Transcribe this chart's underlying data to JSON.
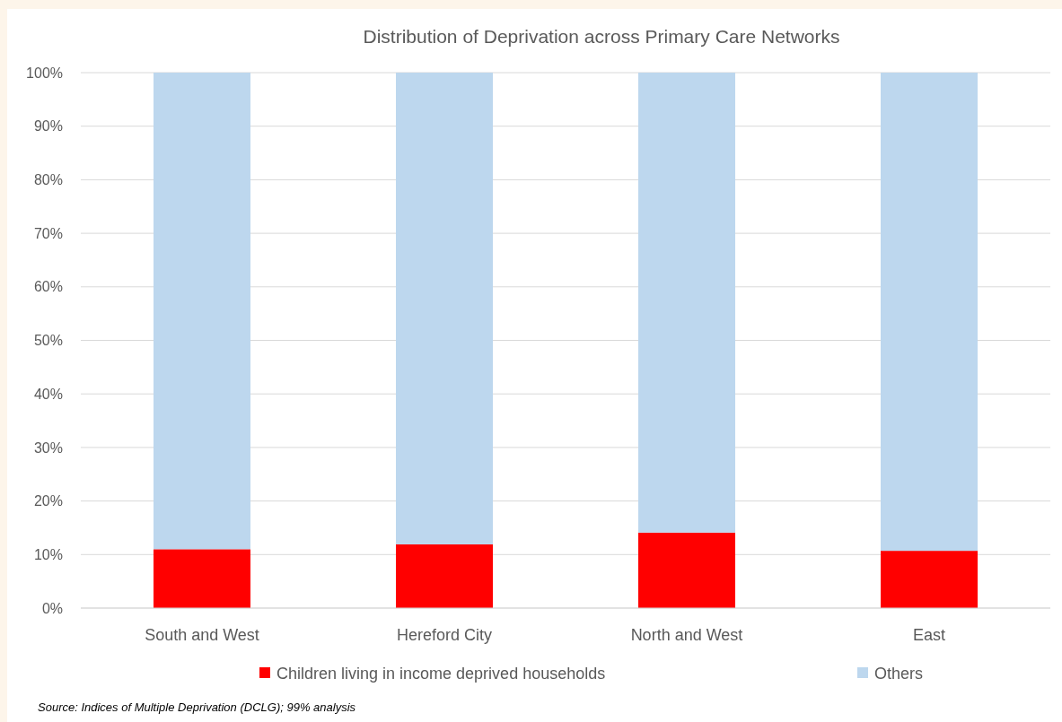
{
  "chart_data": {
    "type": "bar",
    "title": "Distribution of Deprivation across Primary Care Networks",
    "categories": [
      "South and West",
      "Hereford City",
      "North and West",
      "East"
    ],
    "stacked": true,
    "series": [
      {
        "name": "Children living in income deprived households",
        "color": "#ff0000",
        "values": [
          11.0,
          11.9,
          14.1,
          10.7
        ]
      },
      {
        "name": "Others",
        "color": "#bdd7ee",
        "values": [
          89.0,
          88.1,
          85.9,
          89.3
        ]
      }
    ],
    "ylim": [
      0,
      100
    ],
    "yticks": [
      {
        "value": 0,
        "label": "0%"
      },
      {
        "value": 10,
        "label": "10%"
      },
      {
        "value": 20,
        "label": "20%"
      },
      {
        "value": 30,
        "label": "30%"
      },
      {
        "value": 40,
        "label": "40%"
      },
      {
        "value": 50,
        "label": "50%"
      },
      {
        "value": 60,
        "label": "60%"
      },
      {
        "value": 70,
        "label": "70%"
      },
      {
        "value": 80,
        "label": "80%"
      },
      {
        "value": 90,
        "label": "90%"
      },
      {
        "value": 100,
        "label": "100%"
      }
    ],
    "grid": "y",
    "legend": "bottom",
    "annotations": [
      "Source: Indices of Multiple Deprivation (DCLG); 99% analysis"
    ]
  }
}
